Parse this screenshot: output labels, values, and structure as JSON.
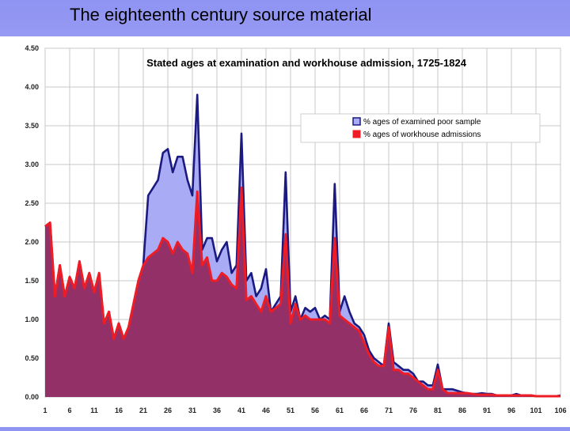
{
  "slide": {
    "title": "The eighteenth century source material"
  },
  "chart_data": {
    "type": "area",
    "title": "Stated ages at examination and workhouse admission, 1725-1824",
    "xlabel": "",
    "ylabel": "",
    "xlim": [
      1,
      106
    ],
    "ylim": [
      0,
      4.5
    ],
    "x_ticks": [
      "1",
      "6",
      "11",
      "16",
      "21",
      "26",
      "31",
      "36",
      "41",
      "46",
      "51",
      "56",
      "61",
      "66",
      "71",
      "76",
      "81",
      "86",
      "91",
      "96",
      "101",
      "106"
    ],
    "y_ticks": [
      "0.00",
      "0.50",
      "1.00",
      "1.50",
      "2.00",
      "2.50",
      "3.00",
      "3.50",
      "4.00",
      "4.50"
    ],
    "grid": true,
    "legend_position": "top-right",
    "series": [
      {
        "name": "% ages of examined poor sample",
        "fill": "#a9abf5",
        "stroke": "#1a1a80",
        "values": [
          2.2,
          2.25,
          1.3,
          1.7,
          1.3,
          1.55,
          1.4,
          1.75,
          1.4,
          1.6,
          1.35,
          1.6,
          0.95,
          1.1,
          0.75,
          0.95,
          0.75,
          0.9,
          1.2,
          1.5,
          1.7,
          2.6,
          2.7,
          2.8,
          3.15,
          3.2,
          2.9,
          3.1,
          3.1,
          2.8,
          2.6,
          3.9,
          1.9,
          2.05,
          2.05,
          1.75,
          1.9,
          2.0,
          1.6,
          1.7,
          3.4,
          1.5,
          1.6,
          1.3,
          1.4,
          1.65,
          1.1,
          1.2,
          1.3,
          2.9,
          1.1,
          1.3,
          1.0,
          1.15,
          1.1,
          1.15,
          1.0,
          1.05,
          1.0,
          2.75,
          1.1,
          1.3,
          1.1,
          0.95,
          0.9,
          0.8,
          0.6,
          0.5,
          0.45,
          0.4,
          0.95,
          0.45,
          0.4,
          0.35,
          0.35,
          0.3,
          0.2,
          0.2,
          0.15,
          0.15,
          0.42,
          0.1,
          0.1,
          0.1,
          0.08,
          0.06,
          0.05,
          0.04,
          0.04,
          0.05,
          0.04,
          0.04,
          0.02,
          0.02,
          0.02,
          0.02,
          0.04,
          0.02,
          0.02,
          0.02,
          0.01,
          0.01,
          0.01,
          0.01,
          0.01,
          0.02
        ]
      },
      {
        "name": "% ages of workhouse admissions",
        "fill": "#933067",
        "stroke": "#ee1c25",
        "values": [
          2.2,
          2.25,
          1.3,
          1.7,
          1.3,
          1.55,
          1.4,
          1.75,
          1.4,
          1.6,
          1.35,
          1.6,
          0.95,
          1.1,
          0.75,
          0.95,
          0.75,
          0.9,
          1.2,
          1.5,
          1.7,
          1.8,
          1.85,
          1.9,
          2.05,
          2.0,
          1.85,
          2.0,
          1.9,
          1.85,
          1.6,
          2.65,
          1.7,
          1.8,
          1.5,
          1.5,
          1.6,
          1.55,
          1.45,
          1.4,
          2.7,
          1.25,
          1.3,
          1.2,
          1.1,
          1.3,
          1.1,
          1.15,
          1.2,
          2.1,
          0.95,
          1.2,
          1.0,
          1.05,
          1.0,
          1.0,
          1.0,
          1.0,
          0.95,
          2.05,
          1.05,
          1.0,
          0.95,
          0.9,
          0.85,
          0.7,
          0.55,
          0.45,
          0.4,
          0.4,
          0.9,
          0.35,
          0.35,
          0.3,
          0.3,
          0.25,
          0.2,
          0.15,
          0.1,
          0.1,
          0.35,
          0.1,
          0.05,
          0.05,
          0.05,
          0.05,
          0.05,
          0.04,
          0.03,
          0.03,
          0.03,
          0.03,
          0.02,
          0.02,
          0.02,
          0.02,
          0.02,
          0.02,
          0.02,
          0.02,
          0.01,
          0.01,
          0.01,
          0.01,
          0.01,
          0.01
        ]
      }
    ]
  }
}
